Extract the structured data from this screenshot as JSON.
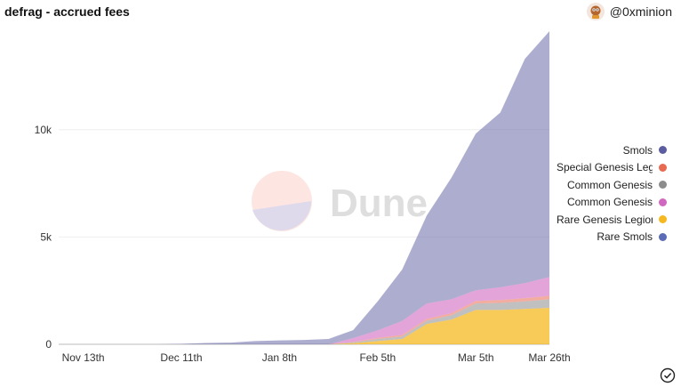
{
  "header": {
    "title": "defrag - accrued fees",
    "author": "@0xminion"
  },
  "watermark": {
    "text": "Dune"
  },
  "colors": {
    "smols": "#5c5da0",
    "special_genesis": "#e86a52",
    "common_genesis_gray": "#8c8c8c",
    "common_genesis_pink": "#d068c0",
    "rare_genesis": "#f5b820",
    "rare_smols": "#5b6bb5"
  },
  "chart_data": {
    "type": "area",
    "stacked": true,
    "x_ticks": [
      "Nov 13th",
      "Dec 11th",
      "Jan 8th",
      "Feb 5th",
      "Mar 5th",
      "Mar 26th"
    ],
    "y_ticks": [
      "0",
      "5k",
      "10k"
    ],
    "ylim": [
      0,
      14800
    ],
    "x": [
      "Nov 6",
      "Nov 13",
      "Nov 20",
      "Nov 27",
      "Dec 4",
      "Dec 11",
      "Dec 18",
      "Dec 25",
      "Jan 1",
      "Jan 8",
      "Jan 15",
      "Jan 22",
      "Jan 29",
      "Feb 5",
      "Feb 12",
      "Feb 19",
      "Feb 26",
      "Mar 5",
      "Mar 12",
      "Mar 19",
      "Mar 26"
    ],
    "grid": "horizontal",
    "legend_position": "right",
    "series": [
      {
        "name": "Rare Genesis Legions",
        "values": [
          0,
          0,
          0,
          0,
          0,
          0,
          0,
          0,
          0,
          0,
          0,
          0,
          50,
          150,
          250,
          950,
          1150,
          1600,
          1600,
          1650,
          1700
        ]
      },
      {
        "name": "Common Genesis",
        "values": [
          0,
          0,
          0,
          0,
          0,
          0,
          0,
          0,
          0,
          0,
          0,
          0,
          40,
          100,
          120,
          150,
          200,
          300,
          330,
          350,
          400
        ]
      },
      {
        "name": "Special Genesis Legions",
        "values": [
          0,
          0,
          0,
          0,
          0,
          0,
          0,
          0,
          0,
          0,
          0,
          0,
          20,
          50,
          70,
          80,
          100,
          120,
          130,
          150,
          160
        ]
      },
      {
        "name": "Common Genesis",
        "values": [
          0,
          0,
          0,
          0,
          0,
          0,
          0,
          0,
          0,
          0,
          0,
          0,
          180,
          350,
          650,
          720,
          650,
          500,
          600,
          700,
          880
        ]
      },
      {
        "name": "Rare Smols",
        "values": [
          0,
          0,
          0,
          0,
          0,
          0,
          0,
          0,
          0,
          0,
          0,
          0,
          0,
          0,
          0,
          0,
          0,
          0,
          0,
          0,
          0
        ]
      },
      {
        "name": "Smols",
        "values": [
          0,
          0,
          0,
          0,
          0,
          20,
          60,
          80,
          150,
          180,
          200,
          250,
          370,
          1350,
          2400,
          4100,
          5650,
          7300,
          8140,
          10450,
          11450
        ]
      }
    ]
  },
  "legend": [
    {
      "label": "Smols",
      "color": "#5c5da0"
    },
    {
      "label": "Special Genesis Legions",
      "color": "#e86a52"
    },
    {
      "label": "Common Genesis",
      "color": "#8c8c8c"
    },
    {
      "label": "Common Genesis",
      "color": "#d068c0"
    },
    {
      "label": "Rare Genesis Legions",
      "color": "#f5b820"
    },
    {
      "label": "Rare Smols",
      "color": "#5b6bb5"
    }
  ]
}
